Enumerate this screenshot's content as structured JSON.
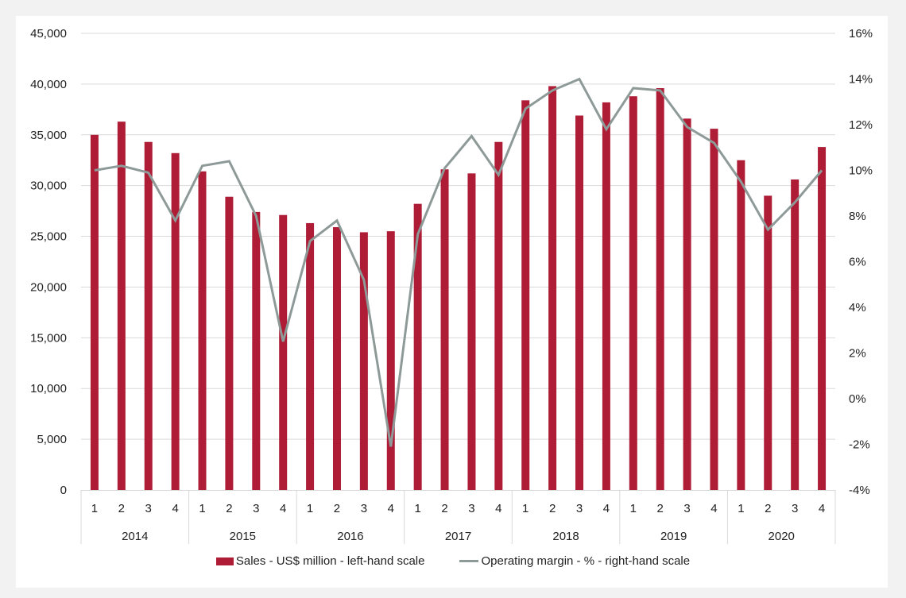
{
  "chart_data": {
    "type": "bar",
    "title": "",
    "xlabel": "",
    "ylabel": "",
    "categories": [
      "1",
      "2",
      "3",
      "4",
      "1",
      "2",
      "3",
      "4",
      "1",
      "2",
      "3",
      "4",
      "1",
      "2",
      "3",
      "4",
      "1",
      "2",
      "3",
      "4",
      "1",
      "2",
      "3",
      "4",
      "1",
      "2",
      "3",
      "4"
    ],
    "groups": [
      "2014",
      "2015",
      "2016",
      "2017",
      "2018",
      "2019",
      "2020"
    ],
    "series": [
      {
        "name": "Sales - US$ million - left-hand scale",
        "type": "bar",
        "axis": "left",
        "color": "#ae1c36",
        "values": [
          35000,
          36300,
          34300,
          33200,
          31400,
          28900,
          27400,
          27100,
          26300,
          25900,
          25400,
          25500,
          28200,
          31600,
          31200,
          34300,
          38400,
          39800,
          36900,
          38200,
          38800,
          39600,
          36600,
          35600,
          32500,
          29000,
          30600,
          33800
        ]
      },
      {
        "name": "Operating margin - % - right-hand scale",
        "type": "line",
        "axis": "right",
        "color": "#8e9a98",
        "values": [
          10.0,
          10.2,
          9.9,
          7.8,
          10.2,
          10.4,
          8.0,
          2.5,
          6.9,
          7.8,
          5.2,
          -2.1,
          7.2,
          10.1,
          11.5,
          9.8,
          12.7,
          13.5,
          14.0,
          11.8,
          13.6,
          13.5,
          11.9,
          11.2,
          9.5,
          7.4,
          8.6,
          10.0
        ]
      }
    ],
    "ylim": [
      0,
      45000
    ],
    "y2lim": [
      -4,
      16
    ],
    "yticks": [
      "0",
      "5,000",
      "10,000",
      "15,000",
      "20,000",
      "25,000",
      "30,000",
      "35,000",
      "40,000",
      "45,000"
    ],
    "y2ticks": [
      "-4%",
      "-2%",
      "0%",
      "2%",
      "4%",
      "6%",
      "8%",
      "10%",
      "12%",
      "14%",
      "16%"
    ],
    "grid": true,
    "legend_position": "bottom"
  },
  "legend": {
    "bar_label": "Sales - US$ million - left-hand scale",
    "line_label": "Operating margin - % - right-hand scale"
  }
}
